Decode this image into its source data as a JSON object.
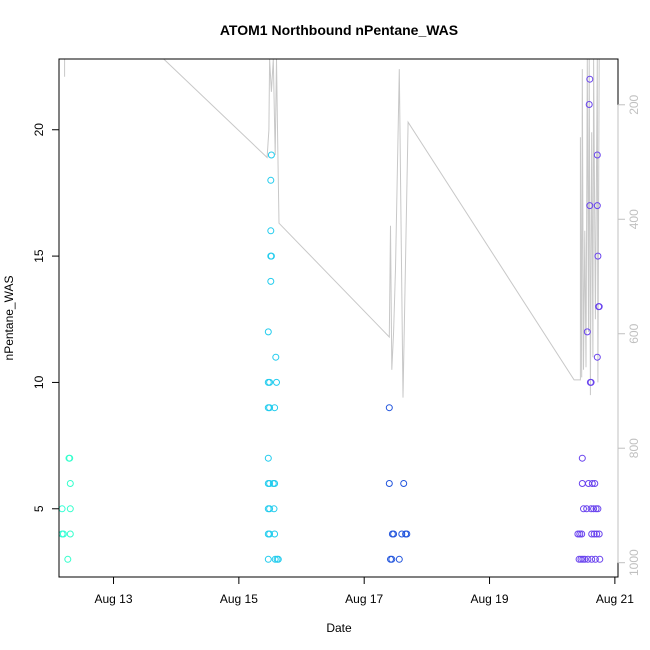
{
  "chart_data": {
    "type": "scatter",
    "title": "ATOM1 Northbound nPentane_WAS",
    "xlabel": "Date",
    "ylabel": "nPentane_WAS",
    "x_ticks": [
      "Aug 13",
      "Aug 15",
      "Aug 17",
      "Aug 19",
      "Aug 21"
    ],
    "x_tick_days": [
      13,
      15,
      17,
      19,
      21
    ],
    "xlim": [
      12.13,
      21.05
    ],
    "ylim": [
      2.3,
      22.8
    ],
    "y_ticks": [
      5,
      10,
      15,
      20
    ],
    "right_axis": {
      "label": "",
      "ticks": [
        200,
        400,
        600,
        800,
        1000
      ],
      "lim": [
        1025,
        120
      ],
      "color": "#c0c0c0"
    },
    "points": [
      {
        "day": 12.18,
        "value": 5,
        "color": "#33ffd6"
      },
      {
        "day": 12.18,
        "value": 4,
        "color": "#33ffd6"
      },
      {
        "day": 12.2,
        "value": 4,
        "color": "#33ffd6"
      },
      {
        "day": 12.27,
        "value": 3,
        "color": "#33ffcc"
      },
      {
        "day": 12.3,
        "value": 7,
        "color": "#33ffcc"
      },
      {
        "day": 12.31,
        "value": 6,
        "color": "#33ffcc"
      },
      {
        "day": 12.31,
        "value": 5,
        "color": "#33ffcc"
      },
      {
        "day": 12.31,
        "value": 4,
        "color": "#33ffcc"
      },
      {
        "day": 12.29,
        "value": 7,
        "color": "#33ffcc"
      },
      {
        "day": 15.47,
        "value": 3,
        "color": "#22ccee"
      },
      {
        "day": 15.47,
        "value": 4,
        "color": "#22ccee"
      },
      {
        "day": 15.47,
        "value": 5,
        "color": "#22ccee"
      },
      {
        "day": 15.47,
        "value": 6,
        "color": "#22ccee"
      },
      {
        "day": 15.47,
        "value": 7,
        "color": "#22ccee"
      },
      {
        "day": 15.47,
        "value": 9,
        "color": "#22ccee"
      },
      {
        "day": 15.47,
        "value": 10,
        "color": "#22ccee"
      },
      {
        "day": 15.47,
        "value": 12,
        "color": "#22ccee"
      },
      {
        "day": 15.49,
        "value": 4,
        "color": "#22ccee"
      },
      {
        "day": 15.49,
        "value": 5,
        "color": "#22ccee"
      },
      {
        "day": 15.49,
        "value": 6,
        "color": "#22ccee"
      },
      {
        "day": 15.49,
        "value": 9,
        "color": "#22ccee"
      },
      {
        "day": 15.49,
        "value": 10,
        "color": "#22ccee"
      },
      {
        "day": 15.51,
        "value": 14,
        "color": "#22ccee"
      },
      {
        "day": 15.51,
        "value": 15,
        "color": "#22ccee"
      },
      {
        "day": 15.51,
        "value": 16,
        "color": "#22ccee"
      },
      {
        "day": 15.51,
        "value": 18,
        "color": "#22ccee"
      },
      {
        "day": 15.52,
        "value": 19,
        "color": "#22ccee"
      },
      {
        "day": 15.52,
        "value": 15,
        "color": "#22ccee"
      },
      {
        "day": 15.55,
        "value": 6,
        "color": "#22ccee"
      },
      {
        "day": 15.56,
        "value": 5,
        "color": "#22ccee"
      },
      {
        "day": 15.57,
        "value": 4,
        "color": "#22ccee"
      },
      {
        "day": 15.57,
        "value": 6,
        "color": "#22ccee"
      },
      {
        "day": 15.57,
        "value": 9,
        "color": "#22ccee"
      },
      {
        "day": 15.58,
        "value": 3,
        "color": "#22ccee"
      },
      {
        "day": 15.59,
        "value": 11,
        "color": "#22ccee"
      },
      {
        "day": 15.6,
        "value": 10,
        "color": "#22ccee"
      },
      {
        "day": 15.61,
        "value": 3,
        "color": "#22ccee"
      },
      {
        "day": 15.63,
        "value": 3,
        "color": "#22ccee"
      },
      {
        "day": 17.4,
        "value": 9,
        "color": "#2255dd"
      },
      {
        "day": 17.4,
        "value": 6,
        "color": "#2255dd"
      },
      {
        "day": 17.42,
        "value": 3,
        "color": "#2255dd"
      },
      {
        "day": 17.44,
        "value": 3,
        "color": "#2255dd"
      },
      {
        "day": 17.45,
        "value": 4,
        "color": "#2255dd"
      },
      {
        "day": 17.47,
        "value": 4,
        "color": "#2255dd"
      },
      {
        "day": 17.56,
        "value": 3,
        "color": "#2255dd"
      },
      {
        "day": 17.6,
        "value": 4,
        "color": "#2255dd"
      },
      {
        "day": 17.63,
        "value": 6,
        "color": "#2255dd"
      },
      {
        "day": 17.66,
        "value": 4,
        "color": "#2255dd"
      },
      {
        "day": 17.68,
        "value": 4,
        "color": "#2255dd"
      },
      {
        "day": 20.41,
        "value": 4,
        "color": "#6a44ee"
      },
      {
        "day": 20.43,
        "value": 3,
        "color": "#6a44ee"
      },
      {
        "day": 20.44,
        "value": 4,
        "color": "#6a44ee"
      },
      {
        "day": 20.46,
        "value": 3,
        "color": "#6a44ee"
      },
      {
        "day": 20.47,
        "value": 4,
        "color": "#6a44ee"
      },
      {
        "day": 20.48,
        "value": 6,
        "color": "#6a44ee"
      },
      {
        "day": 20.48,
        "value": 7,
        "color": "#6a44ee"
      },
      {
        "day": 20.49,
        "value": 3,
        "color": "#6a44ee"
      },
      {
        "day": 20.5,
        "value": 5,
        "color": "#6a44ee"
      },
      {
        "day": 20.52,
        "value": 3,
        "color": "#6a44ee"
      },
      {
        "day": 20.55,
        "value": 5,
        "color": "#6a44ee"
      },
      {
        "day": 20.56,
        "value": 12,
        "color": "#6a44ee"
      },
      {
        "day": 20.57,
        "value": 3,
        "color": "#6a44ee"
      },
      {
        "day": 20.58,
        "value": 6,
        "color": "#6a44ee"
      },
      {
        "day": 20.59,
        "value": 21,
        "color": "#6a44ee"
      },
      {
        "day": 20.6,
        "value": 22,
        "color": "#6a44ee"
      },
      {
        "day": 20.6,
        "value": 17,
        "color": "#6a44ee"
      },
      {
        "day": 20.61,
        "value": 10,
        "color": "#6a44ee"
      },
      {
        "day": 20.62,
        "value": 10,
        "color": "#6a44ee"
      },
      {
        "day": 20.62,
        "value": 5,
        "color": "#6a44ee"
      },
      {
        "day": 20.63,
        "value": 4,
        "color": "#6a44ee"
      },
      {
        "day": 20.63,
        "value": 3,
        "color": "#6a44ee"
      },
      {
        "day": 20.64,
        "value": 6,
        "color": "#6a44ee"
      },
      {
        "day": 20.66,
        "value": 5,
        "color": "#6a44ee"
      },
      {
        "day": 20.67,
        "value": 4,
        "color": "#6a44ee"
      },
      {
        "day": 20.68,
        "value": 6,
        "color": "#6a44ee"
      },
      {
        "day": 20.69,
        "value": 3,
        "color": "#6a44ee"
      },
      {
        "day": 20.7,
        "value": 5,
        "color": "#6a44ee"
      },
      {
        "day": 20.71,
        "value": 4,
        "color": "#6a44ee"
      },
      {
        "day": 20.72,
        "value": 19,
        "color": "#6a44ee"
      },
      {
        "day": 20.72,
        "value": 17,
        "color": "#6a44ee"
      },
      {
        "day": 20.72,
        "value": 11,
        "color": "#6a44ee"
      },
      {
        "day": 20.73,
        "value": 5,
        "color": "#6a44ee"
      },
      {
        "day": 20.73,
        "value": 15,
        "color": "#6a44ee"
      },
      {
        "day": 20.74,
        "value": 13,
        "color": "#6a44ee"
      },
      {
        "day": 20.75,
        "value": 13,
        "color": "#6a44ee"
      },
      {
        "day": 20.75,
        "value": 4,
        "color": "#6a44ee"
      },
      {
        "day": 20.76,
        "value": 3,
        "color": "#6a44ee"
      }
    ],
    "overlay_line": {
      "color": "#c8c8c8",
      "points": [
        [
          12.22,
          22.1
        ],
        [
          12.22,
          22.8
        ],
        [
          13.8,
          22.8
        ],
        [
          15.45,
          18.9
        ],
        [
          15.48,
          20.0
        ],
        [
          15.49,
          22.8
        ],
        [
          15.52,
          21.5
        ],
        [
          15.55,
          22.8
        ],
        [
          15.58,
          19.0
        ],
        [
          15.6,
          22.8
        ],
        [
          15.62,
          19.5
        ],
        [
          15.64,
          16.3
        ],
        [
          17.4,
          11.8
        ],
        [
          17.42,
          16.2
        ],
        [
          17.44,
          10.5
        ],
        [
          17.47,
          12.0
        ],
        [
          17.5,
          14.5
        ],
        [
          17.56,
          22.4
        ],
        [
          17.62,
          9.4
        ],
        [
          17.7,
          20.3
        ],
        [
          20.35,
          10.1
        ],
        [
          20.45,
          10.1
        ],
        [
          20.45,
          19.7
        ],
        [
          20.47,
          10.2
        ],
        [
          20.48,
          22.4
        ],
        [
          20.5,
          10.5
        ],
        [
          20.52,
          16.0
        ],
        [
          20.54,
          10.6
        ],
        [
          20.56,
          22.8
        ],
        [
          20.58,
          12.0
        ],
        [
          20.59,
          22.8
        ],
        [
          20.61,
          9.5
        ],
        [
          20.63,
          19.9
        ],
        [
          20.65,
          11.0
        ],
        [
          20.66,
          22.8
        ],
        [
          20.69,
          12.5
        ],
        [
          20.72,
          22.8
        ],
        [
          20.73,
          10.0
        ],
        [
          20.75,
          22.8
        ]
      ]
    }
  }
}
